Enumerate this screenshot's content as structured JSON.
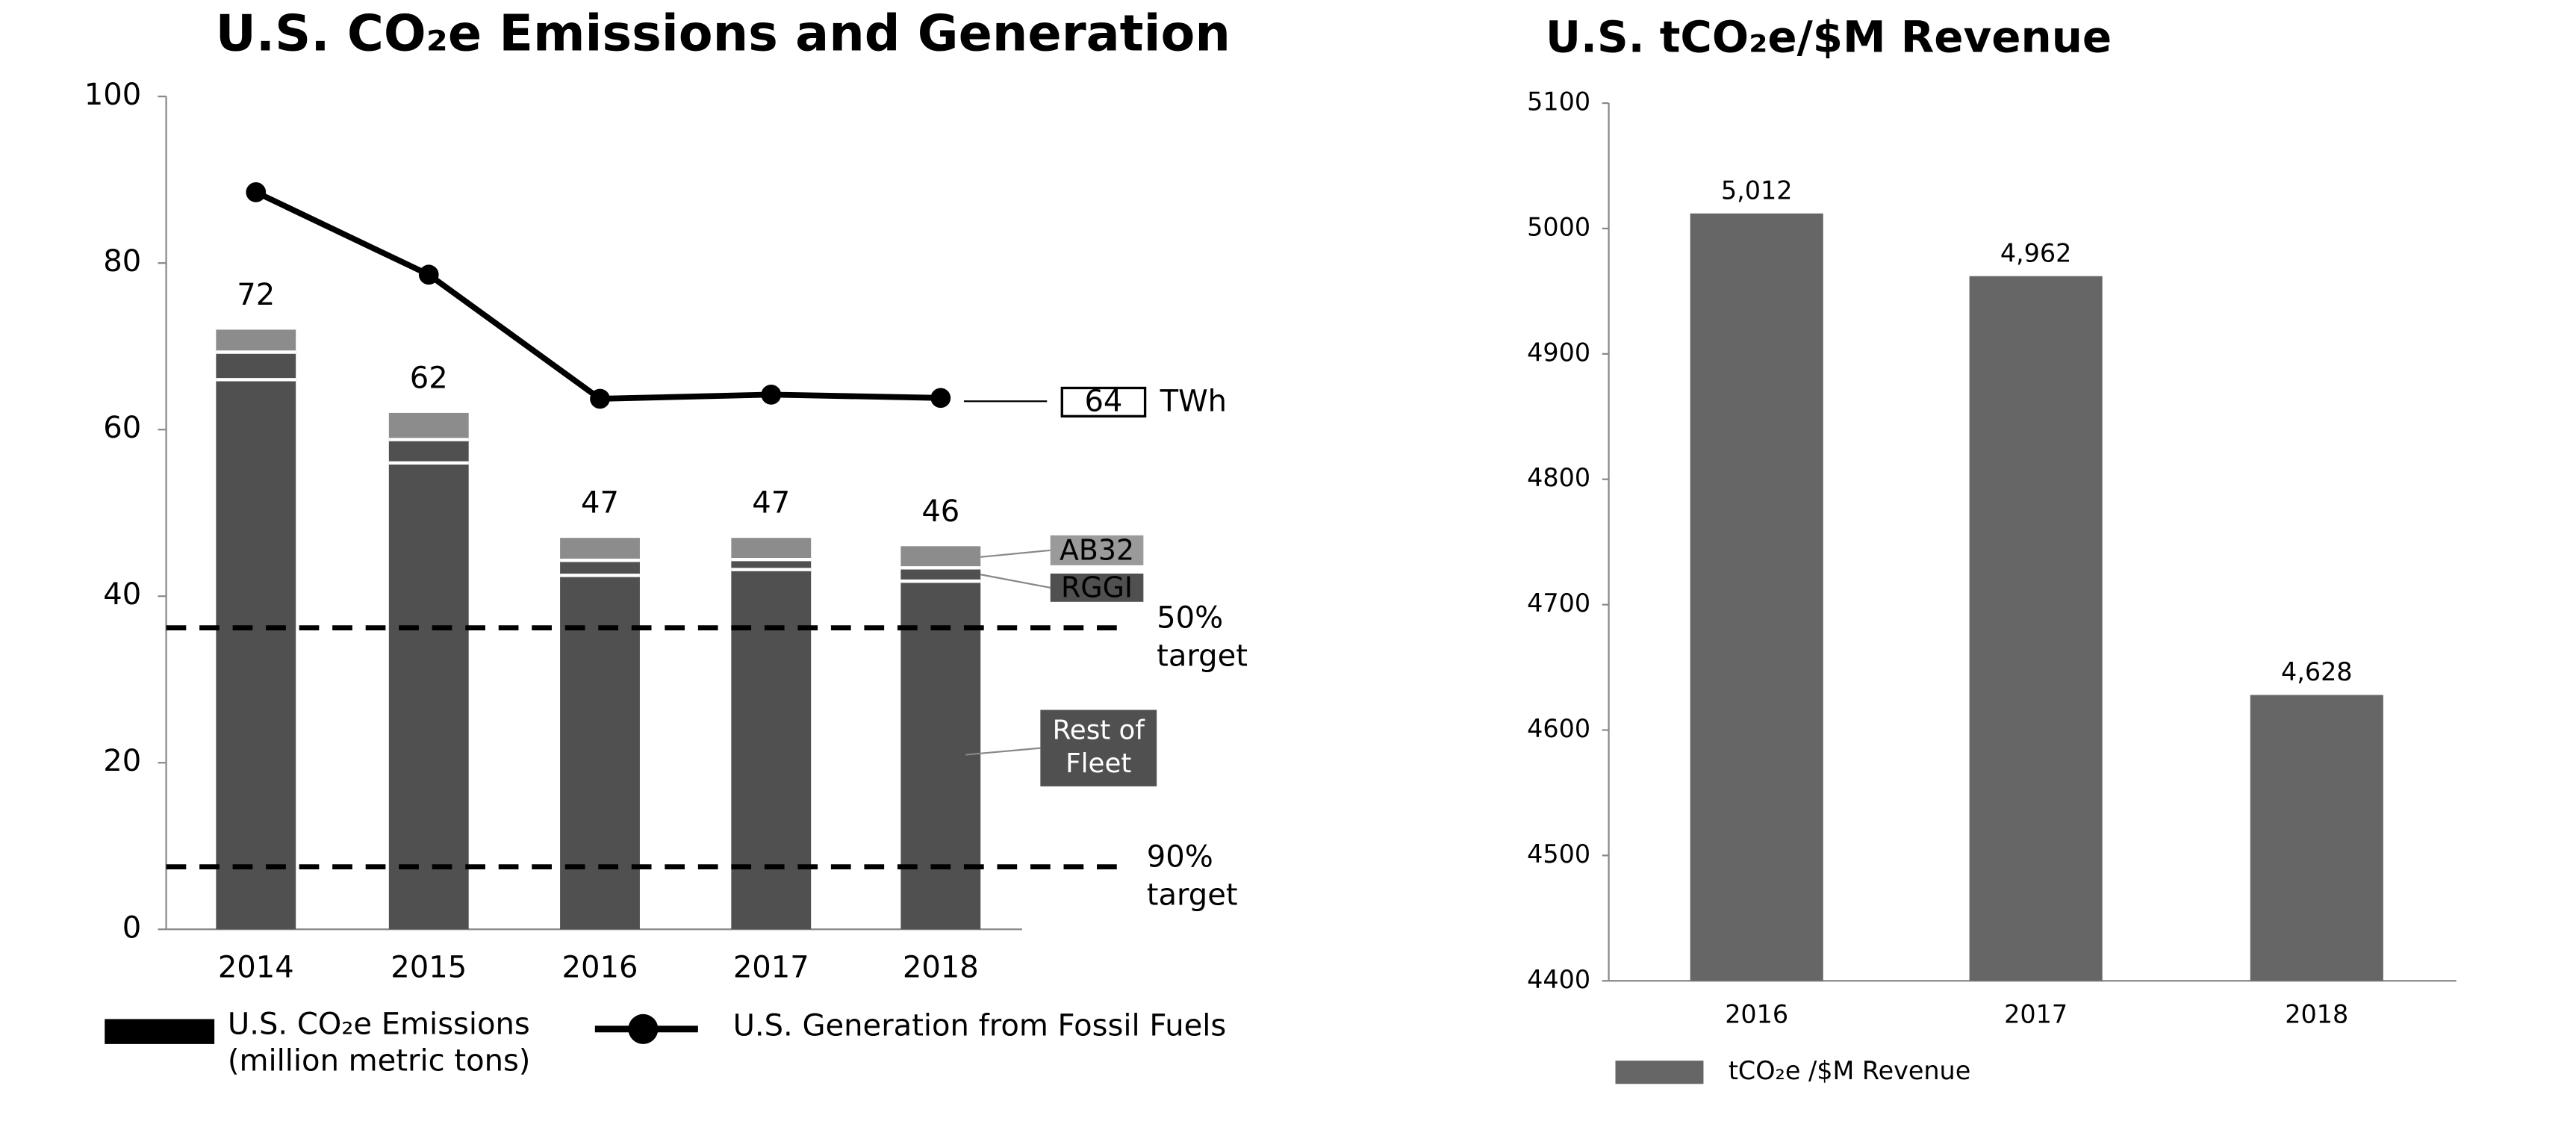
{
  "chart_data": [
    {
      "type": "combo",
      "title": "U.S. CO₂e Emissions and Generation",
      "categories": [
        "2014",
        "2015",
        "2016",
        "2017",
        "2018"
      ],
      "ylim": [
        0,
        100
      ],
      "yticks": [
        0,
        20,
        40,
        60,
        80,
        100
      ],
      "series": [
        {
          "name": "Rest of Fleet",
          "color": "#505050",
          "values": [
            66,
            56,
            42.5,
            43.2,
            41.8
          ]
        },
        {
          "name": "RGGI",
          "color": "#505050",
          "values": [
            3.3,
            2.8,
            1.8,
            1.2,
            1.6
          ]
        },
        {
          "name": "AB32",
          "color": "#8c8c8c",
          "values": [
            2.7,
            3.2,
            2.7,
            2.6,
            2.6
          ]
        }
      ],
      "totals": [
        72,
        62,
        47,
        47,
        46
      ],
      "bar_legend": [
        "U.S. CO₂e Emissions",
        "(million metric tons)"
      ],
      "bar_legend_color": "#000000",
      "line": {
        "name": "U.S. Generation from Fossil Fuels",
        "color": "#000000",
        "values": [
          88.5,
          78.6,
          63.7,
          64.2,
          63.8
        ],
        "end_label": "64",
        "unit": "TWh"
      },
      "targets": [
        {
          "value": 36.2,
          "label": [
            "50%",
            "target"
          ]
        },
        {
          "value": 7.5,
          "label": [
            "90%",
            "target"
          ]
        }
      ]
    },
    {
      "type": "bar",
      "title": "U.S. tCO₂e/$M Revenue",
      "categories": [
        "2016",
        "2017",
        "2018"
      ],
      "values": [
        5012,
        4962,
        4628
      ],
      "value_labels": [
        "5,012",
        "4,962",
        "4,628"
      ],
      "color": "#666666",
      "legend": "tCO₂e /$M Revenue",
      "ylim": [
        4400,
        5100
      ],
      "yticks": [
        4400,
        4500,
        4600,
        4700,
        4800,
        4900,
        5000,
        5100
      ]
    }
  ]
}
